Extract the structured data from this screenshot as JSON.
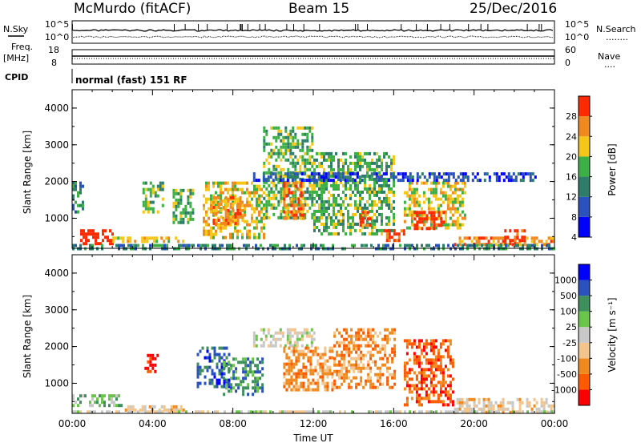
{
  "header": {
    "station": "McMurdo (fitACF)",
    "beam": "Beam 15",
    "date": "25/Dec/2016"
  },
  "sky_panel": {
    "left_label": "N.Sky",
    "right_label": "N.Search",
    "left_ticks": [
      "10^5",
      "10^0"
    ],
    "right_ticks": [
      "10^5",
      "10^0"
    ],
    "right_legend": "........"
  },
  "freq_panel": {
    "left_label_1": "Freq.",
    "left_label_2": "[MHz]",
    "right_label": "Nave",
    "left_ticks": [
      "18",
      "8"
    ],
    "right_ticks": [
      "60",
      "0"
    ],
    "right_legend": "...."
  },
  "cpid": {
    "label": "CPID",
    "value": "normal (fast) 151 RF"
  },
  "chart_data": [
    {
      "type": "heatmap",
      "quantity": "power",
      "ylabel": "Slant Range [km]",
      "xlabel": "",
      "ylim": [
        180,
        4500
      ],
      "xlim": [
        0,
        24
      ],
      "yticks": [
        "1000",
        "2000",
        "3000",
        "4000"
      ],
      "colorbar": {
        "label": "Power [dB]",
        "ticks": [
          "28",
          "24",
          "20",
          "16",
          "12",
          "8",
          "4"
        ],
        "colors": [
          "#0000ff",
          "#2a52be",
          "#2e7d6b",
          "#3cb044",
          "#f5c518",
          "#f08a1e",
          "#ff2a00"
        ]
      },
      "regions": [
        {
          "t0": 0.0,
          "t1": 0.5,
          "r0": 1200,
          "r1": 2000,
          "level": 2
        },
        {
          "t0": 0.4,
          "t1": 2.0,
          "r0": 350,
          "r1": 700,
          "level": 7
        },
        {
          "t0": 2.0,
          "t1": 5.5,
          "r0": 350,
          "r1": 500,
          "level": 4
        },
        {
          "t0": 3.5,
          "t1": 4.5,
          "r0": 1200,
          "r1": 2000,
          "level": 3
        },
        {
          "t0": 5.0,
          "t1": 6.0,
          "r0": 900,
          "r1": 1800,
          "level": 3
        },
        {
          "t0": 6.5,
          "t1": 9.5,
          "r0": 500,
          "r1": 2000,
          "level": 4
        },
        {
          "t0": 7.0,
          "t1": 8.5,
          "r0": 900,
          "r1": 1600,
          "level": 5
        },
        {
          "t0": 9.5,
          "t1": 12.0,
          "r0": 1000,
          "r1": 3500,
          "level": 3
        },
        {
          "t0": 10.5,
          "t1": 11.5,
          "r0": 1000,
          "r1": 2000,
          "level": 5
        },
        {
          "t0": 12.0,
          "t1": 16.0,
          "r0": 600,
          "r1": 2800,
          "level": 3
        },
        {
          "t0": 14.3,
          "t1": 14.8,
          "r0": 800,
          "r1": 1200,
          "level": 6
        },
        {
          "t0": 15.5,
          "t1": 16.5,
          "r0": 400,
          "r1": 700,
          "level": 6
        },
        {
          "t0": 16.5,
          "t1": 19.5,
          "r0": 700,
          "r1": 2000,
          "level": 4
        },
        {
          "t0": 17.0,
          "t1": 18.5,
          "r0": 700,
          "r1": 1200,
          "level": 7
        },
        {
          "t0": 19.0,
          "t1": 24.0,
          "r0": 250,
          "r1": 500,
          "level": 5
        },
        {
          "t0": 21.5,
          "t1": 22.5,
          "r0": 300,
          "r1": 700,
          "level": 6
        },
        {
          "t0": 9.0,
          "t1": 23.0,
          "r0": 2050,
          "r1": 2250,
          "level": 1
        },
        {
          "t0": 0.0,
          "t1": 24.0,
          "r0": 200,
          "r1": 300,
          "level": 2
        }
      ]
    },
    {
      "type": "heatmap",
      "quantity": "velocity",
      "ylabel": "Slant Range [km]",
      "xlabel": "Time UT",
      "ylim": [
        180,
        4500
      ],
      "xlim": [
        0,
        24
      ],
      "yticks": [
        "1000",
        "2000",
        "3000",
        "4000"
      ],
      "xticks": [
        "00:00",
        "04:00",
        "08:00",
        "12:00",
        "16:00",
        "20:00",
        "00:00"
      ],
      "colorbar": {
        "label": "Velocity [m s⁻¹]",
        "ticks": [
          "1000",
          "500",
          "100",
          "25",
          "-25",
          "-100",
          "-500",
          "-1000"
        ],
        "colors": [
          "#ff0000",
          "#ff5a00",
          "#f08a1e",
          "#f3c58c",
          "#c8c8c8",
          "#6ac54a",
          "#3d8f5c",
          "#2a52be",
          "#0000ff"
        ]
      },
      "regions": [
        {
          "t0": 0.0,
          "t1": 2.5,
          "r0": 400,
          "r1": 700,
          "level": 5
        },
        {
          "t0": 2.5,
          "t1": 5.5,
          "r0": 250,
          "r1": 400,
          "level": 3
        },
        {
          "t0": 3.6,
          "t1": 4.3,
          "r0": 1300,
          "r1": 1800,
          "level": 0
        },
        {
          "t0": 6.2,
          "t1": 7.8,
          "r0": 900,
          "r1": 2000,
          "level": 7
        },
        {
          "t0": 7.5,
          "t1": 9.5,
          "r0": 700,
          "r1": 1700,
          "level": 6
        },
        {
          "t0": 9.0,
          "t1": 12.0,
          "r0": 2050,
          "r1": 2500,
          "level": 4
        },
        {
          "t0": 10.5,
          "t1": 13.0,
          "r0": 800,
          "r1": 2000,
          "level": 2
        },
        {
          "t0": 13.0,
          "t1": 16.0,
          "r0": 900,
          "r1": 2500,
          "level": 2
        },
        {
          "t0": 16.5,
          "t1": 19.0,
          "r0": 400,
          "r1": 2200,
          "level": 1
        },
        {
          "t0": 19.0,
          "t1": 24.0,
          "r0": 200,
          "r1": 600,
          "level": 3
        },
        {
          "t0": 0.0,
          "t1": 24.0,
          "r0": 190,
          "r1": 260,
          "level": 4
        }
      ]
    }
  ]
}
